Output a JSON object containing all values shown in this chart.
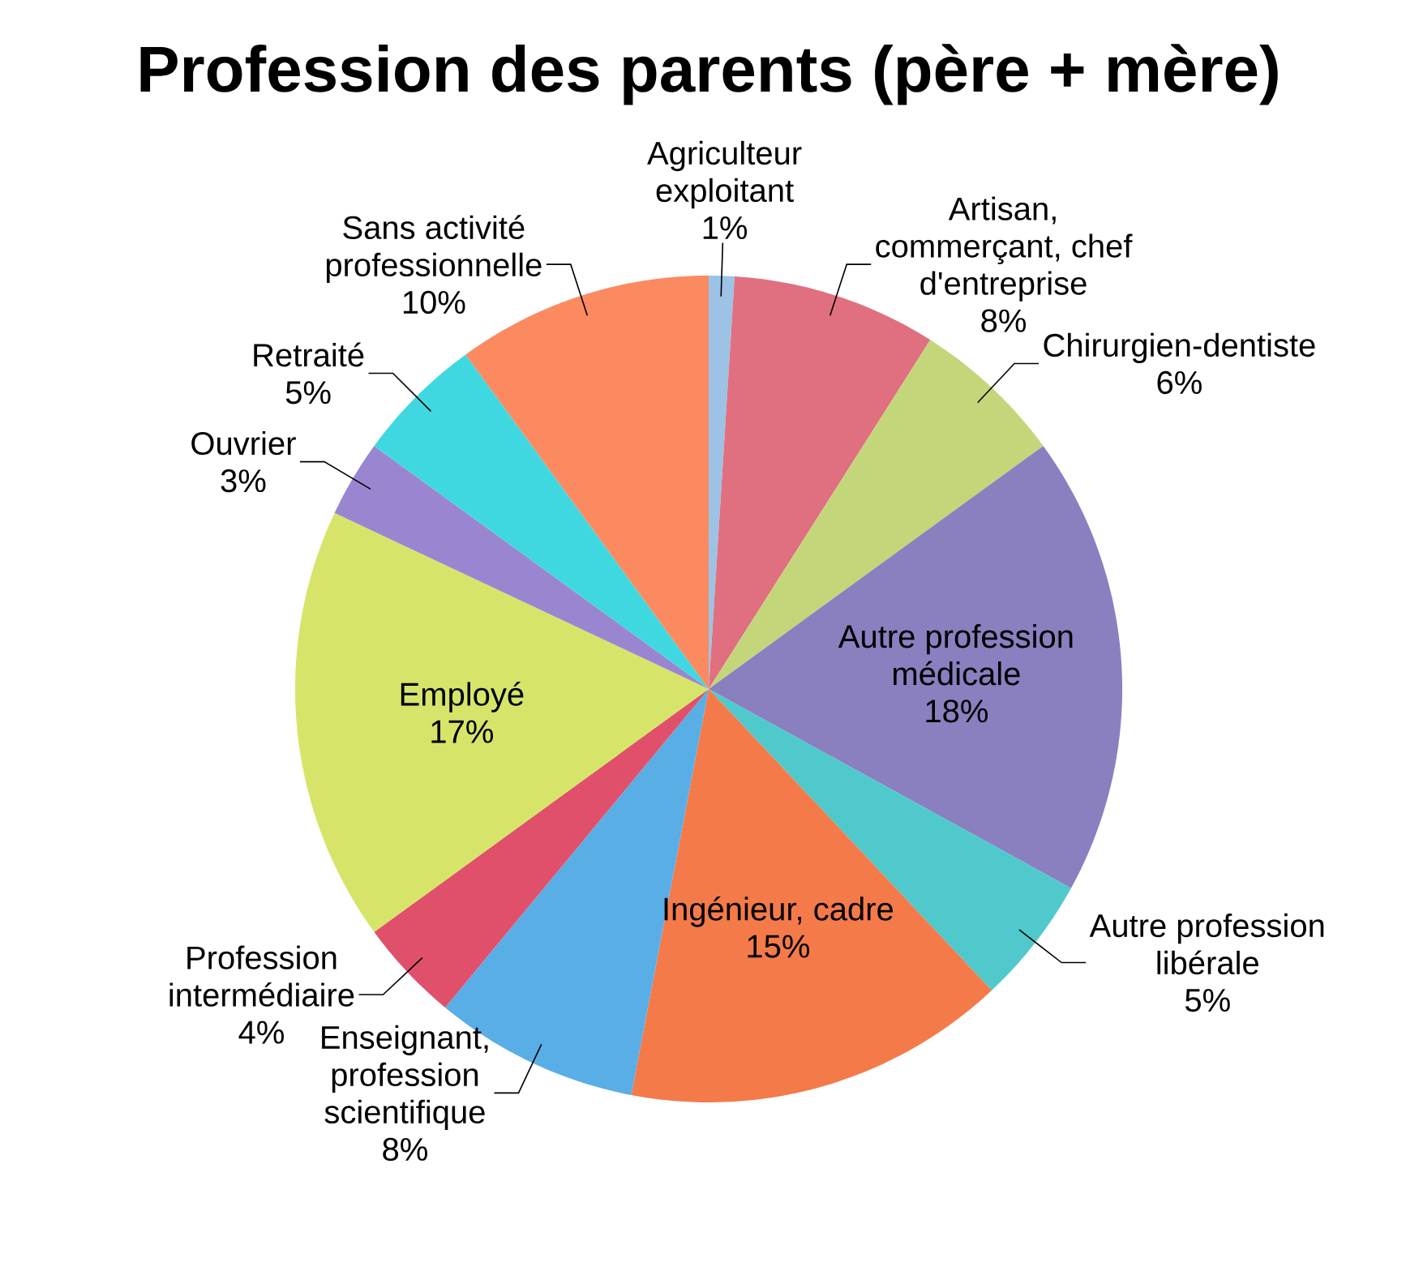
{
  "chart_data": {
    "type": "pie",
    "title": "Profession des parents (père + mère)",
    "categories": [
      "Agriculteur exploitant",
      "Artisan, commerçant, chef d'entreprise",
      "Chirurgien-dentiste",
      "Autre profession médicale",
      "Autre profession libérale",
      "Ingénieur, cadre",
      "Enseignant, profession scientifique",
      "Profession intermédiaire",
      "Employé",
      "Ouvrier",
      "Retraité",
      "Sans activité professionnelle"
    ],
    "values": [
      1,
      8,
      6,
      18,
      5,
      15,
      8,
      4,
      17,
      3,
      5,
      10
    ],
    "value_labels": [
      "1%",
      "8%",
      "6%",
      "18%",
      "5%",
      "15%",
      "8%",
      "4%",
      "17%",
      "3%",
      "5%",
      "10%"
    ],
    "colors": [
      "#9cc3e6",
      "#e0707f",
      "#c3d67a",
      "#8a7fbf",
      "#4fc9cc",
      "#f47a4a",
      "#5aaee6",
      "#e0506a",
      "#d6e56a",
      "#9a86d0",
      "#40d8e0",
      "#fb8a60"
    ]
  }
}
